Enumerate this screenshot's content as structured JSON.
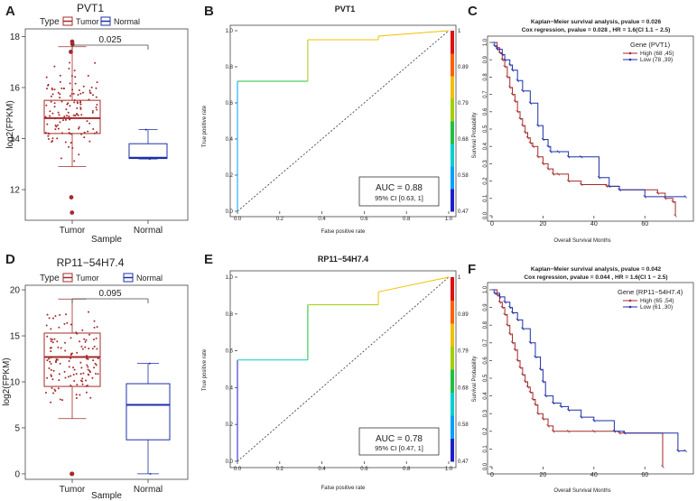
{
  "colors": {
    "tumor": "#a52a2a",
    "normal": "#1e2fa8",
    "km_high": "#a52a2a",
    "km_low": "#1e2fa8",
    "roc_colormap": [
      "#1e1ecc",
      "#00a0ff",
      "#00d0d0",
      "#20c040",
      "#a0d000",
      "#f0c000",
      "#ff6000",
      "#e01010"
    ]
  },
  "chart_data": [
    {
      "panel": "A",
      "type": "box",
      "title": "PVT1",
      "legend_label": "Type",
      "legend": [
        "Tumor",
        "Normal"
      ],
      "xlabel": "Sample",
      "ylabel": "log2(FPKM)",
      "categories": [
        "Tumor",
        "Normal"
      ],
      "ylim": [
        10.8,
        18.3
      ],
      "yticks": [
        12,
        14,
        16,
        18
      ],
      "pvalue": "0.025",
      "boxes": [
        {
          "name": "Tumor",
          "min": 12.9,
          "q1": 14.2,
          "median": 14.8,
          "q3": 15.5,
          "max": 17.6,
          "outliers": [
            17.8,
            17.7,
            17.4,
            11.7,
            11.1
          ]
        },
        {
          "name": "Normal",
          "min": 13.2,
          "q1": 13.22,
          "median": 13.25,
          "q3": 13.8,
          "max": 14.35,
          "outliers": []
        }
      ]
    },
    {
      "panel": "B",
      "type": "roc",
      "title": "PVT1",
      "xlabel": "False positive rate",
      "ylabel": "True positive rate",
      "xticks": [
        "0.0",
        "0.2",
        "0.4",
        "0.6",
        "0.8",
        "1.0"
      ],
      "yticks": [
        "0.0",
        "0.2",
        "0.4",
        "0.6",
        "0.8",
        "1.0"
      ],
      "colorbar_ticks": [
        "1",
        "0.89",
        "0.79",
        "0.68",
        "0.58",
        "0.47"
      ],
      "auc_text": "AUC = 0.88",
      "ci_text": "95% CI [0.63, 1]",
      "fpr": [
        0,
        0,
        0,
        0.333,
        0.333,
        0.667,
        0.667,
        1
      ],
      "tpr": [
        0,
        0.72,
        0.72,
        0.72,
        0.95,
        0.95,
        0.97,
        1
      ]
    },
    {
      "panel": "C",
      "type": "km",
      "title": "Kaplan−Meier survival analysis, pvalue = 0.026",
      "subtitle": "Cox regression,  pvalue = 0.028 , HR = 1.6(CI 1.1 − 2.5)",
      "legend_title": "Gene (PVT1)",
      "xlabel": "Overall Survival Months",
      "ylabel": "Survival Probability",
      "xticks": [
        "0",
        "20",
        "40",
        "60"
      ],
      "yticks": [
        "0.0",
        "0.1",
        "0.2",
        "0.3",
        "0.4",
        "0.5",
        "0.6",
        "0.7",
        "0.8",
        "0.9",
        "1.0"
      ],
      "xlim": [
        0,
        78
      ],
      "series": [
        {
          "name": "High (68 ,45)",
          "times": [
            0,
            2,
            3,
            4,
            5,
            6,
            7,
            8,
            9,
            10,
            11,
            12,
            13,
            14,
            15,
            16,
            18,
            20,
            22,
            24,
            26,
            30,
            35,
            45,
            50,
            65,
            68,
            71,
            72
          ],
          "surv": [
            1.0,
            0.97,
            0.94,
            0.9,
            0.86,
            0.8,
            0.74,
            0.7,
            0.66,
            0.6,
            0.56,
            0.52,
            0.48,
            0.45,
            0.42,
            0.4,
            0.34,
            0.3,
            0.27,
            0.24,
            0.24,
            0.2,
            0.18,
            0.17,
            0.15,
            0.13,
            0.1,
            0.08,
            0.0
          ]
        },
        {
          "name": "Low (78 ,39)",
          "times": [
            0,
            1,
            2,
            4,
            5,
            7,
            8,
            10,
            12,
            15,
            18,
            20,
            22,
            23,
            26,
            30,
            35,
            42,
            46,
            50,
            60,
            76
          ],
          "surv": [
            1.0,
            0.98,
            0.96,
            0.93,
            0.9,
            0.87,
            0.84,
            0.78,
            0.72,
            0.65,
            0.52,
            0.44,
            0.4,
            0.37,
            0.37,
            0.34,
            0.34,
            0.22,
            0.17,
            0.15,
            0.11,
            0.11
          ]
        }
      ]
    },
    {
      "panel": "D",
      "type": "box",
      "title": "RP11−54H7.4",
      "legend_label": "Type",
      "legend": [
        "Tumor",
        "Normal"
      ],
      "xlabel": "Sample",
      "ylabel": "log2(FPKM)",
      "categories": [
        "Tumor",
        "Normal"
      ],
      "ylim": [
        -0.6,
        20.5
      ],
      "yticks": [
        0,
        5,
        10,
        15,
        20
      ],
      "pvalue": "0.095",
      "boxes": [
        {
          "name": "Tumor",
          "min": 6,
          "q1": 9.5,
          "median": 12.7,
          "q3": 15.3,
          "max": 19,
          "outliers": [
            0,
            0,
            0
          ]
        },
        {
          "name": "Normal",
          "min": 0,
          "q1": 3.7,
          "median": 7.5,
          "q3": 9.8,
          "max": 12,
          "outliers": []
        }
      ]
    },
    {
      "panel": "E",
      "type": "roc",
      "title": "RP11−54H7.4",
      "xlabel": "False positive rate",
      "ylabel": "True positive rate",
      "xticks": [
        "0.0",
        "0.2",
        "0.4",
        "0.6",
        "0.8",
        "1.0"
      ],
      "yticks": [
        "0.0",
        "0.2",
        "0.4",
        "0.6",
        "0.8",
        "1.0"
      ],
      "colorbar_ticks": [
        "1",
        "0.89",
        "0.79",
        "0.68",
        "0.58",
        "0.47"
      ],
      "auc_text": "AUC = 0.78",
      "ci_text": "95% CI [0.47, 1]",
      "fpr": [
        0,
        0,
        0,
        0.333,
        0.333,
        0.667,
        0.667,
        1
      ],
      "tpr": [
        0,
        0.55,
        0.55,
        0.55,
        0.85,
        0.85,
        0.92,
        1
      ]
    },
    {
      "panel": "F",
      "type": "km",
      "title": "Kaplan−Meier survival analysis, pvalue = 0.042",
      "subtitle": "Cox regression,  pvalue = 0.044 , HR = 1.6(CI 1 − 2.5)",
      "legend_title": "Gene (RP11−54H7.4)",
      "xlabel": "Overall Survival Months",
      "ylabel": "Survival Probability",
      "xticks": [
        "0",
        "20",
        "40",
        "60"
      ],
      "yticks": [
        "0.0",
        "0.1",
        "0.2",
        "0.3",
        "0.4",
        "0.5",
        "0.6",
        "0.7",
        "0.8",
        "0.9",
        "1.0"
      ],
      "xlim": [
        0,
        78
      ],
      "series": [
        {
          "name": "High (65 ,54)",
          "times": [
            0,
            2,
            3,
            4,
            5,
            6,
            7,
            8,
            9,
            10,
            11,
            12,
            13,
            14,
            15,
            16,
            17,
            18,
            20,
            22,
            24,
            30,
            40,
            50,
            67
          ],
          "surv": [
            1.0,
            0.97,
            0.93,
            0.9,
            0.86,
            0.8,
            0.75,
            0.7,
            0.66,
            0.6,
            0.56,
            0.52,
            0.48,
            0.45,
            0.42,
            0.38,
            0.35,
            0.3,
            0.27,
            0.23,
            0.2,
            0.2,
            0.2,
            0.19,
            0.0
          ]
        },
        {
          "name": "Low (61 ,30)",
          "times": [
            0,
            1,
            3,
            5,
            7,
            8,
            10,
            12,
            15,
            17,
            19,
            20,
            21,
            24,
            27,
            30,
            35,
            40,
            48,
            52,
            73,
            76
          ],
          "surv": [
            1.0,
            0.98,
            0.96,
            0.93,
            0.9,
            0.87,
            0.83,
            0.78,
            0.7,
            0.62,
            0.55,
            0.48,
            0.4,
            0.36,
            0.34,
            0.32,
            0.28,
            0.26,
            0.2,
            0.19,
            0.09,
            0.09
          ]
        }
      ]
    }
  ]
}
